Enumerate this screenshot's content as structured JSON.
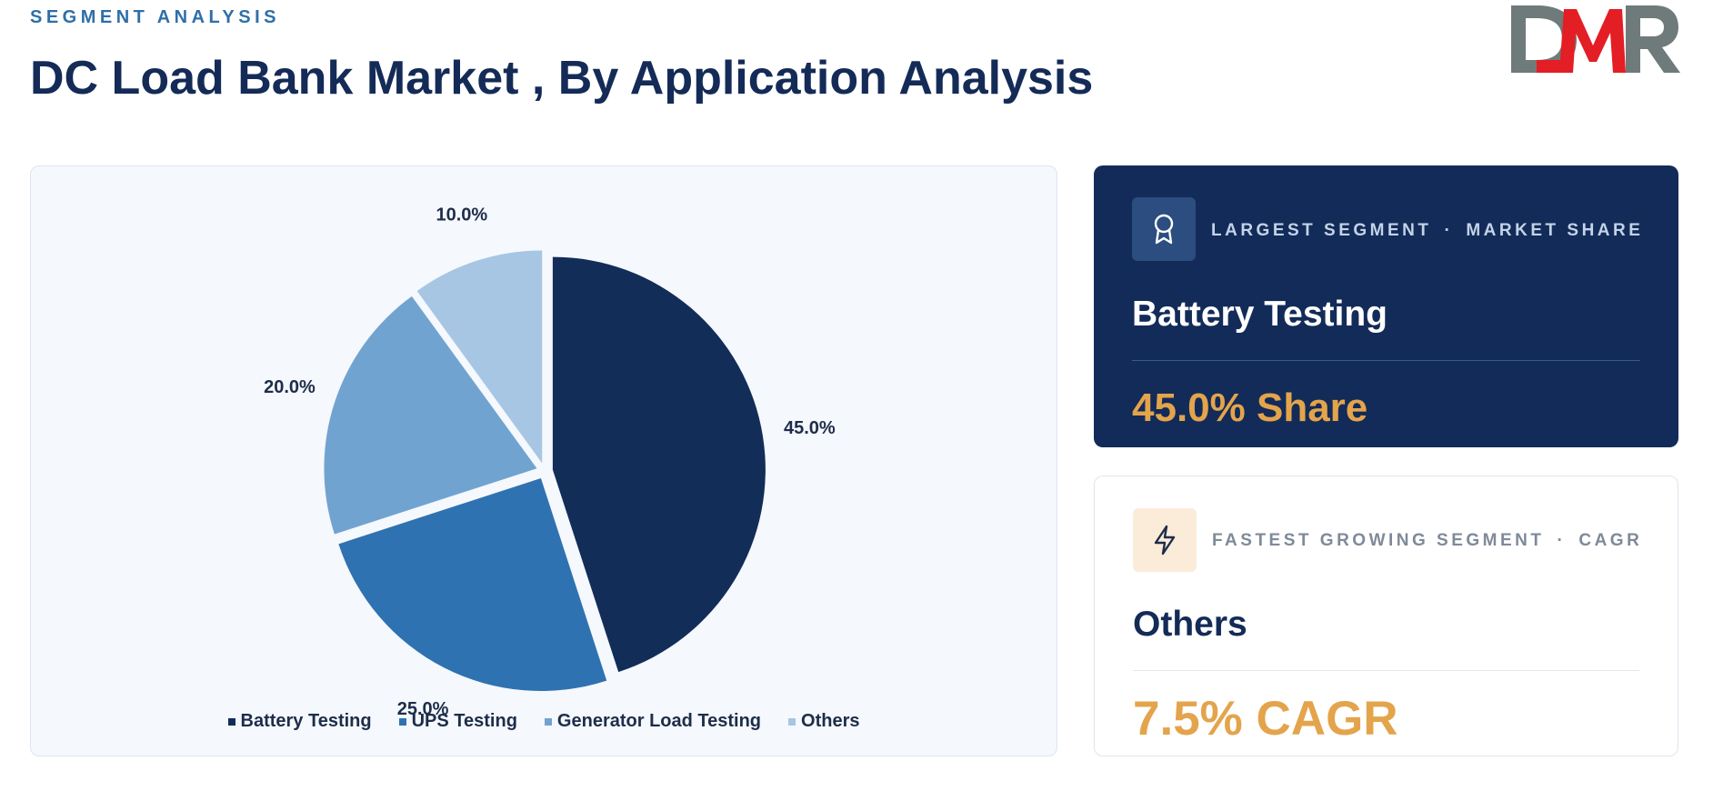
{
  "header": {
    "eyebrow": "SEGMENT ANALYSIS",
    "title": "DC Load Bank Market , By Application Analysis"
  },
  "logo": {
    "text": "DMR",
    "colors": {
      "d": "#6f7b7a",
      "m": "#e31e24",
      "r": "#6f7b7a"
    }
  },
  "chart_data": {
    "type": "pie",
    "categories": [
      "Battery Testing",
      "UPS Testing",
      "Generator Load Testing",
      "Others"
    ],
    "values": [
      45.0,
      25.0,
      20.0,
      10.0
    ],
    "labels": [
      "45.0%",
      "25.0%",
      "20.0%",
      "10.0%"
    ],
    "colors": [
      "#132d59",
      "#2f72b1",
      "#71a3d1",
      "#a6c6e4"
    ],
    "legend_position": "bottom"
  },
  "cards": {
    "largest": {
      "label": "LARGEST SEGMENT",
      "sublabel": "MARKET SHARE",
      "separator": "·",
      "icon": "award-icon",
      "segment": "Battery Testing",
      "metric": "45.0% Share"
    },
    "fastest": {
      "label": "FASTEST GROWING SEGMENT",
      "sublabel": "CAGR",
      "separator": "·",
      "icon": "lightning-icon",
      "segment": "Others",
      "metric": "7.5% CAGR"
    }
  }
}
